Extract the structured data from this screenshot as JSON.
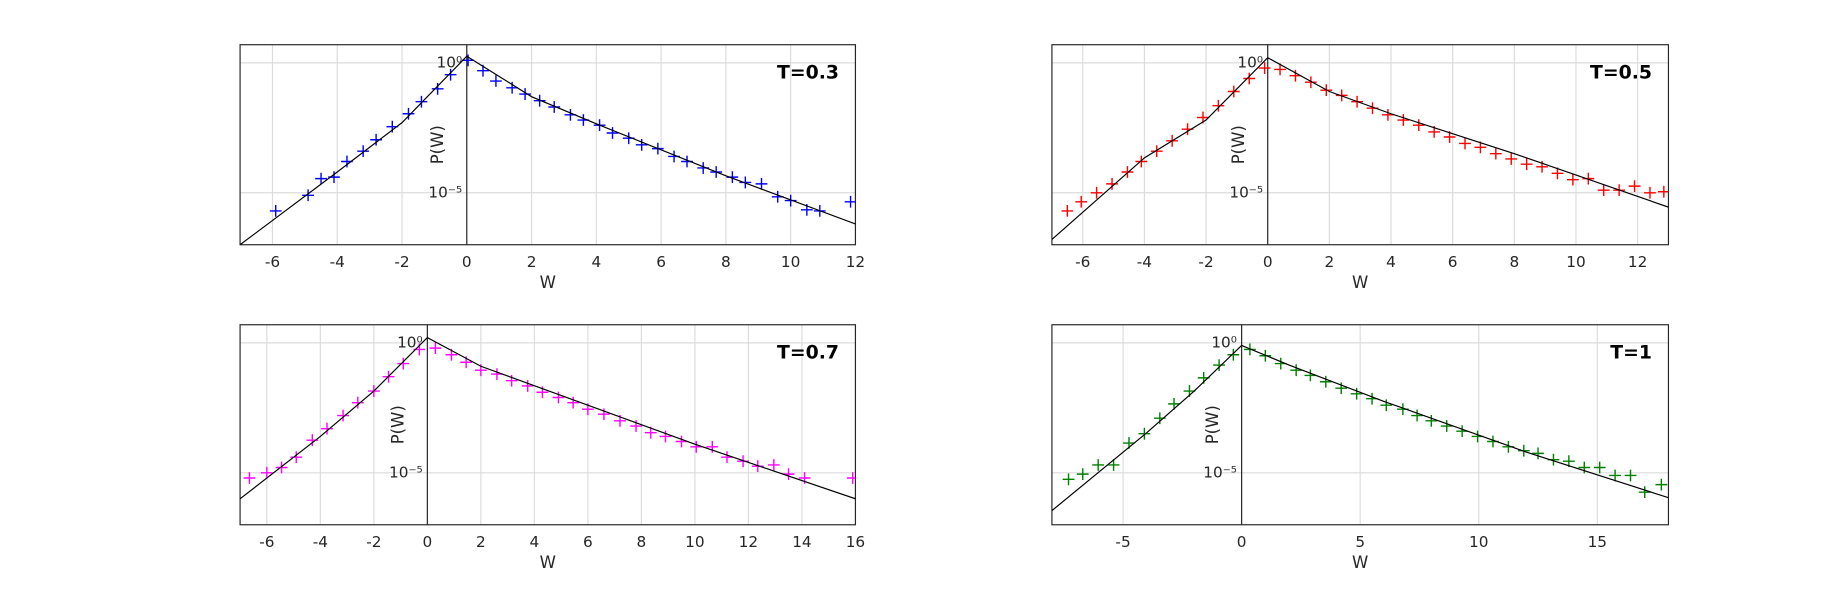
{
  "chart_data": [
    {
      "type": "line",
      "title": "T=0.3",
      "xlabel": "W",
      "ylabel": "P(W)",
      "yscale": "log",
      "grid": true,
      "xlim": [
        -7,
        12
      ],
      "ylim": [
        1e-07,
        5
      ],
      "xticks": [
        -6,
        -4,
        -2,
        0,
        2,
        4,
        6,
        8,
        10,
        12
      ],
      "yticks": [
        {
          "value": 1e-05,
          "label": "10⁻⁵"
        },
        {
          "value": 1,
          "label": "10⁰"
        }
      ],
      "series": [
        {
          "color": "#0000ff",
          "marker": "+",
          "x": [
            -5.9,
            -4.9,
            -4.5,
            -4.1,
            -3.7,
            -3.2,
            -2.8,
            -2.3,
            -1.8,
            -1.4,
            -0.9,
            -0.5,
            0.04,
            0.5,
            0.9,
            1.4,
            1.8,
            2.25,
            2.7,
            3.2,
            3.6,
            4.1,
            4.5,
            5.0,
            5.4,
            5.9,
            6.4,
            6.8,
            7.3,
            7.7,
            8.2,
            8.6,
            9.1,
            9.6,
            10.0,
            10.5,
            10.9,
            11.85
          ],
          "values": [
            2e-06,
            8e-06,
            3.5e-05,
            4e-05,
            0.00016,
            0.0004,
            0.0011,
            0.0035,
            0.011,
            0.032,
            0.1,
            0.35,
            1.25,
            0.5,
            0.2,
            0.11,
            0.063,
            0.035,
            0.02,
            0.01,
            0.0063,
            0.004,
            0.002,
            0.00126,
            0.0007,
            0.0005,
            0.00025,
            0.00016,
            9e-05,
            6.3e-05,
            4e-05,
            2.5e-05,
            2.2e-05,
            7e-06,
            5e-06,
            2.2e-06,
            2e-06,
            4.5e-06
          ]
        },
        {
          "color": "#000000",
          "x": [
            -7,
            -4,
            -2,
            0,
            2,
            4,
            8,
            12
          ],
          "values": [
            1e-07,
            6.3e-05,
            0.005,
            1.8,
            0.05,
            0.0045,
            4.5e-05,
            6.3e-07
          ]
        }
      ]
    },
    {
      "type": "line",
      "title": "T=0.5",
      "xlabel": "W",
      "ylabel": "P(W)",
      "yscale": "log",
      "grid": true,
      "xlim": [
        -7,
        13
      ],
      "ylim": [
        1e-07,
        5
      ],
      "xticks": [
        -6,
        -4,
        -2,
        0,
        2,
        4,
        6,
        8,
        10,
        12
      ],
      "yticks": [
        {
          "value": 1e-05,
          "label": "10⁻⁵"
        },
        {
          "value": 1,
          "label": "10⁰"
        }
      ],
      "series": [
        {
          "color": "#ff0000",
          "marker": "+",
          "x": [
            -6.5,
            -6.05,
            -5.55,
            -5.05,
            -4.55,
            -4.1,
            -3.6,
            -3.1,
            -2.6,
            -2.1,
            -1.6,
            -1.1,
            -0.6,
            -0.1,
            0.4,
            0.9,
            1.4,
            1.9,
            2.4,
            2.9,
            3.4,
            3.9,
            4.4,
            4.9,
            5.4,
            5.9,
            6.4,
            6.9,
            7.4,
            7.9,
            8.4,
            8.9,
            9.4,
            9.9,
            10.4,
            10.9,
            11.4,
            11.9,
            12.4,
            12.85
          ],
          "values": [
            2e-06,
            4.5e-06,
            1e-05,
            2.2e-05,
            6.3e-05,
            0.00016,
            0.0004,
            0.001,
            0.0028,
            0.0079,
            0.0224,
            0.079,
            0.25,
            0.63,
            0.56,
            0.32,
            0.18,
            0.089,
            0.056,
            0.032,
            0.018,
            0.01,
            0.0063,
            0.004,
            0.0022,
            0.0014,
            0.00079,
            0.00056,
            0.00032,
            0.0002,
            0.000126,
            0.0001,
            5.6e-05,
            3.2e-05,
            3.5e-05,
            1.26e-05,
            1.26e-05,
            1.8e-05,
            1e-05,
            1.1e-05
          ]
        },
        {
          "color": "#000000",
          "x": [
            -7,
            -4,
            -2,
            0,
            2,
            4,
            8,
            13
          ],
          "values": [
            1.6e-07,
            0.00022,
            0.0063,
            1.58,
            0.079,
            0.011,
            0.00032,
            2.8e-06
          ]
        }
      ]
    },
    {
      "type": "line",
      "title": "T=0.7",
      "xlabel": "W",
      "ylabel": "P(W)",
      "yscale": "log",
      "grid": true,
      "xlim": [
        -7,
        16
      ],
      "ylim": [
        1e-07,
        5
      ],
      "xticks": [
        -6,
        -4,
        -2,
        0,
        2,
        4,
        6,
        8,
        10,
        12,
        14,
        16
      ],
      "yticks": [
        {
          "value": 1e-05,
          "label": "10⁻⁵"
        },
        {
          "value": 1,
          "label": "10⁰"
        }
      ],
      "series": [
        {
          "color": "#ff00ff",
          "marker": "+",
          "x": [
            -6.65,
            -6.0,
            -5.45,
            -4.9,
            -4.3,
            -3.75,
            -3.15,
            -2.6,
            -2.0,
            -1.45,
            -0.9,
            -0.3,
            0.3,
            0.9,
            1.45,
            2.0,
            2.6,
            3.15,
            3.75,
            4.3,
            4.9,
            5.45,
            6.0,
            6.6,
            7.2,
            7.8,
            8.35,
            8.9,
            9.5,
            10.05,
            10.65,
            11.2,
            11.8,
            12.35,
            12.95,
            13.5,
            14.1,
            15.9
          ],
          "values": [
            6.3e-06,
            1e-05,
            1.6e-05,
            4e-05,
            0.00018,
            0.0005,
            0.0016,
            0.005,
            0.014,
            0.05,
            0.16,
            0.56,
            0.63,
            0.35,
            0.18,
            0.089,
            0.063,
            0.035,
            0.022,
            0.0126,
            0.0079,
            0.005,
            0.0028,
            0.0018,
            0.001,
            0.00063,
            0.00035,
            0.00025,
            0.00016,
            0.0001,
            0.0001,
            4e-05,
            2.8e-05,
            1.8e-05,
            2e-05,
            8.9e-06,
            6.3e-06,
            6.3e-06
          ]
        },
        {
          "color": "#000000",
          "x": [
            -7,
            -4,
            -2,
            0,
            2,
            6,
            10,
            16
          ],
          "values": [
            1e-06,
            0.00025,
            0.014,
            1.6,
            0.126,
            0.004,
            0.000126,
            1e-06
          ]
        }
      ]
    },
    {
      "type": "line",
      "title": "T=1",
      "xlabel": "W",
      "ylabel": "P(W)",
      "yscale": "log",
      "grid": true,
      "xlim": [
        -8,
        18
      ],
      "ylim": [
        1e-07,
        5
      ],
      "xticks": [
        -5,
        0,
        5,
        10,
        15
      ],
      "yticks": [
        {
          "value": 1e-05,
          "label": "10⁻⁵"
        },
        {
          "value": 1,
          "label": "10⁰"
        }
      ],
      "series": [
        {
          "color": "#008000",
          "marker": "+",
          "x": [
            -7.3,
            -6.7,
            -6.05,
            -5.4,
            -4.75,
            -4.1,
            -3.45,
            -2.85,
            -2.2,
            -1.6,
            -0.95,
            -0.35,
            0.35,
            1.0,
            1.65,
            2.3,
            2.9,
            3.55,
            4.2,
            4.85,
            5.5,
            6.1,
            6.8,
            7.4,
            8.0,
            8.65,
            9.3,
            9.95,
            10.6,
            11.25,
            11.9,
            12.5,
            13.15,
            13.8,
            14.45,
            15.1,
            15.75,
            16.4,
            17.0,
            17.7
          ],
          "values": [
            5.6e-06,
            8.9e-06,
            2e-05,
            2e-05,
            0.00014,
            0.00032,
            0.00126,
            0.0045,
            0.014,
            0.045,
            0.14,
            0.35,
            0.56,
            0.32,
            0.16,
            0.089,
            0.056,
            0.032,
            0.018,
            0.011,
            0.0071,
            0.004,
            0.0028,
            0.0016,
            0.001,
            0.00063,
            0.0004,
            0.00025,
            0.00016,
            0.0001,
            7.1e-05,
            5.6e-05,
            3.2e-05,
            2.8e-05,
            1.6e-05,
            1.6e-05,
            7.9e-06,
            7.9e-06,
            1.8e-06,
            3.5e-06
          ]
        },
        {
          "color": "#000000",
          "x": [
            -8,
            -4,
            -2,
            0,
            2,
            6,
            12,
            18
          ],
          "values": [
            3.5e-07,
            0.00035,
            0.014,
            0.8,
            0.14,
            0.0056,
            6.3e-05,
            1.1e-06
          ]
        }
      ]
    }
  ]
}
